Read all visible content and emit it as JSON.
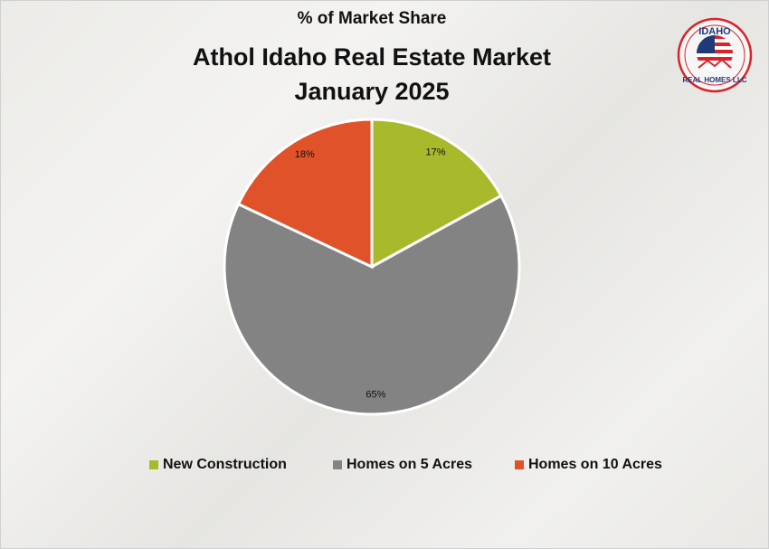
{
  "chart_data": {
    "type": "pie",
    "subtitle": "% of Market Share",
    "title_line1": "Athol Idaho Real Estate Market",
    "title_line2": "January 2025",
    "categories": [
      "New Construction",
      "Homes on 5 Acres",
      "Homes on 10 Acres"
    ],
    "values": [
      17,
      65,
      18
    ],
    "labels": [
      "17%",
      "65%",
      "18%"
    ],
    "colors": [
      "#A8B92B",
      "#838383",
      "#E0532A"
    ],
    "start": "top, clockwise",
    "legend_position": "bottom"
  },
  "logo": {
    "text_top": "IDAHO",
    "text_bottom": "REAL HOMES LLC",
    "colors": [
      "#D8232A",
      "#1F3A78"
    ]
  }
}
